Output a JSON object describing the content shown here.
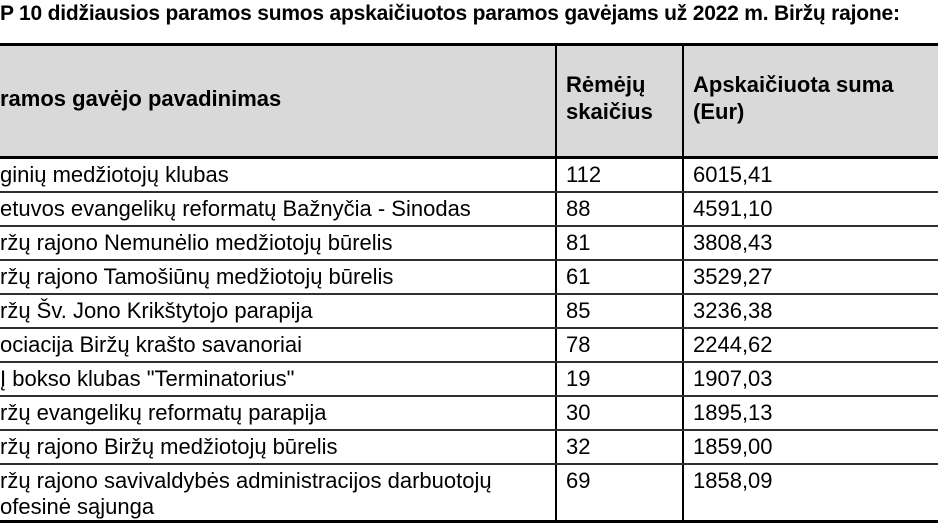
{
  "title": "P 10 didžiausios paramos sumos apskaičiuotos paramos gavėjams už 2022 m. Biržų rajone:",
  "colors": {
    "header_bg": "#d9d9d9",
    "border": "#000000",
    "text": "#000000",
    "background": "#ffffff"
  },
  "table": {
    "headers": {
      "name": "ramos gavėjo pavadinimas",
      "supporters": "Rėmėjų\nskaičius",
      "amount": "Apskaičiuota suma\n(Eur)"
    },
    "rows": [
      {
        "name": "ginių medžiotojų klubas",
        "supporters": "112",
        "amount": "6015,41"
      },
      {
        "name": "etuvos evangelikų reformatų Bažnyčia - Sinodas",
        "supporters": "88",
        "amount": "4591,10"
      },
      {
        "name": "ržų rajono Nemunėlio medžiotojų būrelis",
        "supporters": "81",
        "amount": "3808,43"
      },
      {
        "name": "ržų rajono Tamošiūnų medžiotojų būrelis",
        "supporters": "61",
        "amount": "3529,27"
      },
      {
        "name": "ržų Šv. Jono Krikštytojo parapija",
        "supporters": "85",
        "amount": "3236,38"
      },
      {
        "name": "ociacija Biržų krašto savanoriai",
        "supporters": "78",
        "amount": "2244,62"
      },
      {
        "name": "Į bokso klubas \"Terminatorius\"",
        "supporters": "19",
        "amount": "1907,03"
      },
      {
        "name": "ržų evangelikų reformatų parapija",
        "supporters": "30",
        "amount": "1895,13"
      },
      {
        "name": "ržų rajono Biržų medžiotojų būrelis",
        "supporters": "32",
        "amount": "1859,00"
      },
      {
        "name": "ržų rajono savivaldybės administracijos darbuotojų\nofesinė sąjunga",
        "supporters": "69",
        "amount": "1858,09"
      }
    ]
  }
}
